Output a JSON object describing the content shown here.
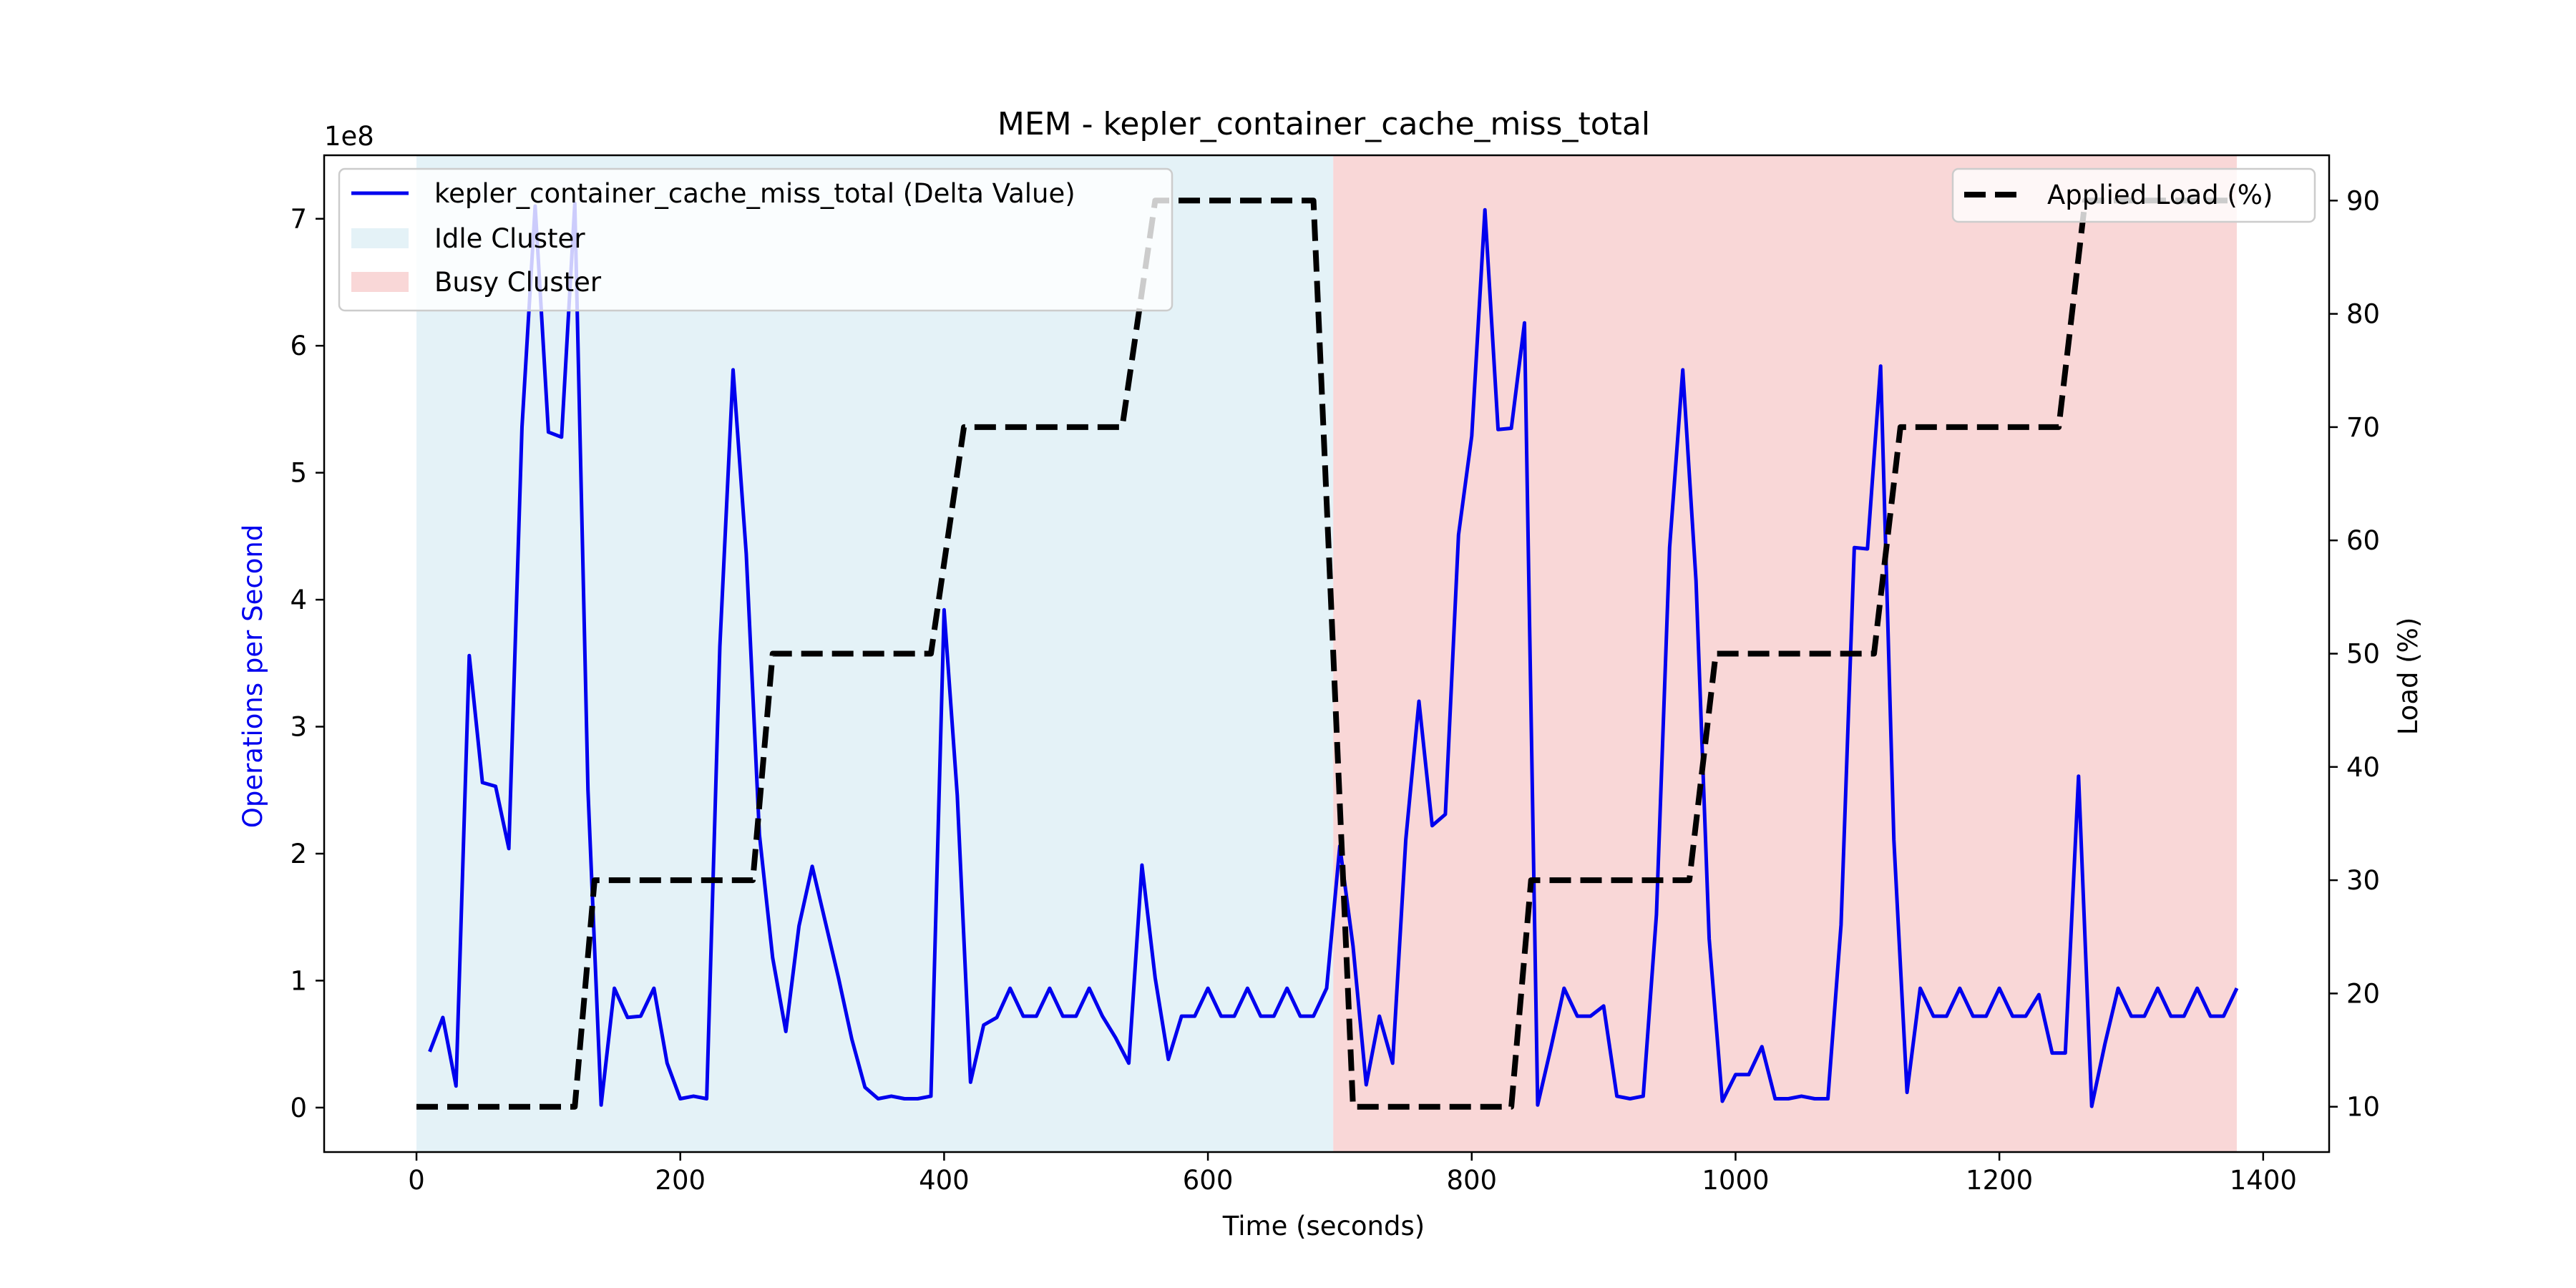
{
  "chart_data": {
    "type": "line",
    "title": "MEM - kepler_container_cache_miss_total",
    "xlabel": "Time (seconds)",
    "ylabel_left": "Operations per Second",
    "ylabel_right": "Load (%)",
    "left_scale_label": "1e8",
    "xlim": [
      -70,
      1450
    ],
    "ylim_left": [
      -0.35,
      7.5
    ],
    "ylim_right": [
      6,
      94
    ],
    "x_ticks": [
      0,
      200,
      400,
      600,
      800,
      1000,
      1200,
      1400
    ],
    "y_left_ticks": [
      0,
      1,
      2,
      3,
      4,
      5,
      6,
      7
    ],
    "y_right_ticks": [
      10,
      20,
      30,
      40,
      50,
      60,
      70,
      80,
      90
    ],
    "grid": false,
    "colors": {
      "cache_line": "#0000ee",
      "load_line": "#000000",
      "idle_band": "#e4f2f7",
      "busy_band": "#f9d7d7",
      "left_label": "#0000ee"
    },
    "regions": [
      {
        "name": "Idle Cluster",
        "x_start": 0,
        "x_end": 695
      },
      {
        "name": "Busy Cluster",
        "x_start": 695,
        "x_end": 1380
      }
    ],
    "legend_left": {
      "position": "upper-left",
      "entries": [
        "kepler_container_cache_miss_total (Delta Value)",
        "Idle Cluster",
        "Busy Cluster"
      ]
    },
    "legend_right": {
      "position": "upper-right",
      "entries": [
        "Applied Load (%)"
      ]
    },
    "series": [
      {
        "name": "kepler_container_cache_miss_total (Delta Value)",
        "axis": "left",
        "x": [
          10,
          20,
          30,
          40,
          50,
          60,
          70,
          80,
          90,
          100,
          110,
          120,
          130,
          140,
          150,
          160,
          170,
          180,
          190,
          200,
          210,
          220,
          230,
          240,
          250,
          260,
          270,
          280,
          290,
          300,
          310,
          320,
          330,
          340,
          350,
          360,
          370,
          380,
          390,
          400,
          410,
          420,
          430,
          440,
          450,
          460,
          470,
          480,
          490,
          500,
          510,
          520,
          530,
          540,
          550,
          560,
          570,
          580,
          590,
          600,
          610,
          620,
          630,
          640,
          650,
          660,
          670,
          680,
          690,
          700,
          710,
          720,
          730,
          740,
          750,
          760,
          770,
          780,
          790,
          800,
          810,
          820,
          830,
          840,
          850,
          860,
          870,
          880,
          890,
          900,
          910,
          920,
          930,
          940,
          950,
          960,
          970,
          980,
          990,
          1000,
          1010,
          1020,
          1030,
          1040,
          1050,
          1060,
          1070,
          1080,
          1090,
          1100,
          1110,
          1120,
          1130,
          1140,
          1150,
          1160,
          1170,
          1180,
          1190,
          1200,
          1210,
          1220,
          1230,
          1240,
          1250,
          1260,
          1270,
          1280,
          1290,
          1300,
          1310,
          1320,
          1330,
          1340,
          1350,
          1360,
          1370,
          1380
        ],
        "values": [
          0.44,
          0.71,
          0.17,
          3.56,
          2.56,
          2.53,
          2.04,
          5.36,
          7.1,
          5.32,
          5.28,
          7.12,
          2.5,
          0.02,
          0.94,
          0.71,
          0.72,
          0.94,
          0.35,
          0.07,
          0.09,
          0.07,
          3.63,
          5.81,
          4.36,
          2.15,
          1.18,
          0.6,
          1.43,
          1.9,
          1.46,
          1.02,
          0.54,
          0.16,
          0.07,
          0.09,
          0.07,
          0.07,
          0.09,
          3.92,
          2.46,
          0.2,
          0.65,
          0.71,
          0.94,
          0.72,
          0.72,
          0.94,
          0.72,
          0.72,
          0.94,
          0.72,
          0.55,
          0.35,
          1.91,
          1.02,
          0.38,
          0.72,
          0.72,
          0.94,
          0.72,
          0.72,
          0.94,
          0.72,
          0.72,
          0.94,
          0.72,
          0.72,
          0.94,
          2.06,
          1.27,
          0.18,
          0.72,
          0.35,
          2.11,
          3.2,
          2.22,
          2.31,
          4.51,
          5.29,
          7.07,
          5.34,
          5.35,
          6.18,
          0.02,
          0.47,
          0.94,
          0.72,
          0.72,
          0.8,
          0.09,
          0.07,
          0.09,
          1.52,
          4.41,
          5.81,
          4.15,
          1.33,
          0.05,
          0.26,
          0.26,
          0.48,
          0.07,
          0.07,
          0.09,
          0.07,
          0.07,
          1.44,
          4.41,
          4.4,
          5.84,
          2.11,
          0.12,
          0.94,
          0.72,
          0.72,
          0.94,
          0.72,
          0.72,
          0.94,
          0.72,
          0.72,
          0.89,
          0.43,
          0.43,
          2.61,
          0.01,
          0.5,
          0.94,
          0.72,
          0.72,
          0.94,
          0.72,
          0.72,
          0.94,
          0.72,
          0.72,
          0.94
        ]
      },
      {
        "name": "Applied Load (%)",
        "axis": "right",
        "x": [
          0,
          120,
          135,
          255,
          270,
          390,
          415,
          535,
          560,
          680,
          710,
          830,
          845,
          965,
          985,
          1105,
          1125,
          1245,
          1265,
          1380
        ],
        "values": [
          10,
          10,
          30,
          30,
          50,
          50,
          70,
          70,
          90,
          90,
          10,
          10,
          30,
          30,
          50,
          50,
          70,
          70,
          90,
          90
        ]
      }
    ]
  }
}
